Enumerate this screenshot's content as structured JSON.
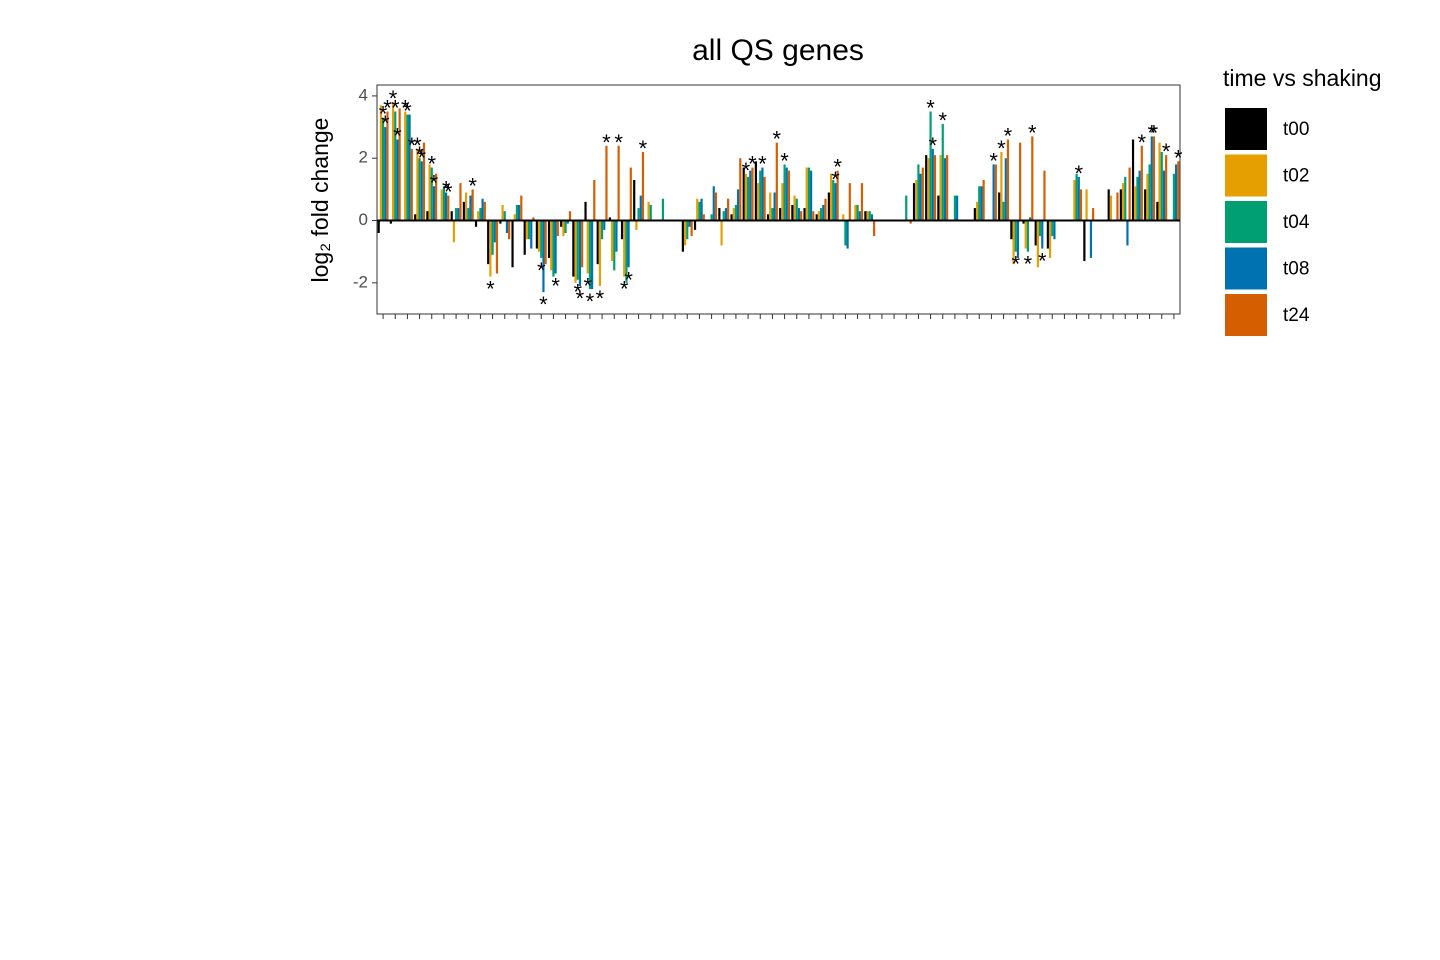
{
  "chart_data": {
    "type": "bar",
    "title": "all QS genes",
    "y_label": "log₂ fold change",
    "legend_title": "time vs shaking",
    "categories": [
      null,
      null,
      null,
      null,
      null,
      null,
      null,
      null,
      null,
      null,
      null,
      null,
      null,
      null,
      null,
      null,
      null,
      null,
      null,
      null,
      null,
      null,
      null,
      null,
      null,
      null,
      null,
      null,
      null,
      null,
      null,
      null,
      null,
      null,
      null,
      null,
      null,
      null,
      null,
      null,
      null,
      null,
      null,
      null,
      null,
      null,
      null,
      null,
      null,
      null,
      null,
      null,
      null,
      null,
      null,
      null,
      null,
      null,
      null,
      null,
      null,
      null,
      null,
      null,
      null,
      null
    ],
    "ylim": [
      -3,
      4.35
    ],
    "yticks": [
      -2,
      0,
      2,
      4
    ],
    "grid": false,
    "legend": "right",
    "series": [
      {
        "name": "t00",
        "color": "#000000",
        "values": [
          -0.4,
          -0.1,
          0.0,
          0.2,
          0.3,
          0.0,
          0.3,
          0.6,
          -0.2,
          -1.4,
          -0.1,
          -1.5,
          -1.1,
          -0.9,
          -1.2,
          -0.2,
          -1.8,
          0.6,
          -1.4,
          0.1,
          -0.6,
          1.3,
          0.0,
          0.0,
          0.0,
          -1.0,
          -0.3,
          0.0,
          0.4,
          0.2,
          1.7,
          1.9,
          0.2,
          0.4,
          0.5,
          0.4,
          0.2,
          0.9,
          0.0,
          0.0,
          0.3,
          0.0,
          0.0,
          0.0,
          1.2,
          2.1,
          0.8,
          0.0,
          0.0,
          0.4,
          0.0,
          0.9,
          -0.6,
          -0.1,
          -0.8,
          -0.9,
          0.0,
          0.0,
          -1.3,
          0.0,
          1.0,
          1.0,
          2.6,
          1.0,
          0.6,
          0.0
        ]
      },
      {
        "name": "t02",
        "color": "#E69F00",
        "values": [
          3.7,
          3.8,
          3.5,
          2.3,
          1.8,
          1.0,
          -0.7,
          0.9,
          0.3,
          -1.8,
          0.5,
          0.2,
          -0.6,
          -1.0,
          -1.6,
          -0.5,
          -2.0,
          -1.7,
          -2.1,
          -1.3,
          -1.8,
          -0.3,
          0.6,
          0.0,
          0.0,
          -0.8,
          0.7,
          0.0,
          -0.8,
          0.4,
          1.5,
          1.2,
          0.9,
          1.2,
          0.8,
          1.7,
          0.3,
          1.5,
          0.2,
          0.5,
          0.3,
          0.0,
          0.0,
          0.0,
          1.3,
          2.0,
          2.1,
          0.0,
          0.0,
          0.6,
          0.0,
          2.2,
          -1.4,
          -0.9,
          -1.5,
          -1.2,
          0.0,
          1.3,
          1.0,
          0.0,
          0.8,
          1.2,
          1.1,
          1.5,
          2.5,
          0.0
        ]
      },
      {
        "name": "t04",
        "color": "#009E73",
        "values": [
          3.3,
          3.5,
          3.4,
          2.0,
          1.7,
          1.1,
          0.4,
          0.4,
          0.4,
          -1.1,
          0.3,
          0.5,
          -0.6,
          -1.2,
          -1.8,
          -0.4,
          -1.9,
          -2.2,
          -0.6,
          -1.6,
          -2.0,
          0.4,
          0.5,
          0.7,
          0.0,
          -0.6,
          0.6,
          0.2,
          0.3,
          0.5,
          1.4,
          1.6,
          0.4,
          1.8,
          0.7,
          1.7,
          0.4,
          1.3,
          -0.8,
          0.5,
          0.3,
          0.0,
          0.0,
          0.8,
          1.8,
          3.5,
          3.1,
          0.8,
          0.0,
          1.1,
          0.0,
          0.6,
          -1.0,
          -1.0,
          -0.5,
          -0.5,
          0.0,
          1.5,
          0.0,
          0.0,
          0.0,
          1.4,
          1.4,
          1.8,
          2.2,
          1.5
        ]
      },
      {
        "name": "t08",
        "color": "#0072B2",
        "values": [
          3.0,
          2.6,
          3.4,
          1.9,
          1.1,
          0.9,
          0.4,
          0.8,
          0.7,
          -0.7,
          -0.4,
          0.5,
          -0.9,
          -2.3,
          -1.7,
          -0.1,
          -2.1,
          -2.2,
          -0.3,
          -1.0,
          -1.5,
          0.8,
          0.0,
          0.0,
          0.0,
          -0.2,
          0.7,
          1.1,
          0.4,
          1.0,
          1.6,
          1.7,
          0.9,
          1.7,
          0.4,
          1.6,
          0.5,
          1.2,
          -0.9,
          0.3,
          0.2,
          0.0,
          0.0,
          0.0,
          1.5,
          2.3,
          2.0,
          0.8,
          0.0,
          1.1,
          1.8,
          2.0,
          -1.2,
          0.1,
          -0.9,
          -0.6,
          0.0,
          1.4,
          -1.2,
          0.0,
          0.0,
          -0.8,
          1.6,
          2.7,
          1.6,
          1.8
        ]
      },
      {
        "name": "t24",
        "color": "#D55E00",
        "values": [
          3.5,
          3.6,
          2.3,
          2.5,
          1.5,
          0.8,
          1.2,
          1.0,
          0.6,
          -1.7,
          -0.6,
          0.8,
          0.1,
          -1.4,
          -0.5,
          0.3,
          -1.5,
          1.3,
          2.4,
          2.4,
          1.7,
          2.2,
          0.0,
          0.0,
          0.0,
          -0.5,
          0.2,
          0.9,
          0.7,
          2.0,
          1.7,
          1.4,
          2.5,
          1.6,
          0.3,
          0.3,
          0.7,
          1.6,
          1.2,
          1.2,
          -0.5,
          0.0,
          0.0,
          -0.1,
          1.7,
          2.1,
          2.1,
          0.0,
          0.0,
          1.3,
          1.8,
          2.6,
          2.5,
          2.7,
          1.6,
          0.0,
          0.0,
          1.0,
          0.4,
          0.0,
          0.9,
          1.7,
          2.4,
          2.7,
          2.1,
          1.9
        ]
      }
    ],
    "annotations": [
      {
        "text": "*",
        "series": 1,
        "index": 1
      },
      {
        "text": "*",
        "series": 1,
        "index": 2
      },
      {
        "text": "*",
        "series": 1,
        "index": 3
      },
      {
        "text": "*",
        "series": 1,
        "index": 9
      },
      {
        "text": "*",
        "series": 1,
        "index": 17
      },
      {
        "text": "*",
        "series": 1,
        "index": 18
      },
      {
        "text": "*",
        "series": 1,
        "index": 20
      },
      {
        "text": "*",
        "series": 1,
        "index": 30
      },
      {
        "text": "*",
        "series": 1,
        "index": 51
      },
      {
        "text": "*",
        "series": 2,
        "index": 0
      },
      {
        "text": "*",
        "series": 2,
        "index": 1
      },
      {
        "text": "*",
        "series": 2,
        "index": 2
      },
      {
        "text": "*",
        "series": 2,
        "index": 3
      },
      {
        "text": "*",
        "series": 2,
        "index": 4
      },
      {
        "text": "*",
        "series": 2,
        "index": 13
      },
      {
        "text": "*",
        "series": 2,
        "index": 16
      },
      {
        "text": "*",
        "series": 2,
        "index": 17
      },
      {
        "text": "*",
        "series": 2,
        "index": 33
      },
      {
        "text": "*",
        "series": 2,
        "index": 45
      },
      {
        "text": "*",
        "series": 2,
        "index": 46
      },
      {
        "text": "*",
        "series": 2,
        "index": 52
      },
      {
        "text": "*",
        "series": 2,
        "index": 53
      },
      {
        "text": "*",
        "series": 3,
        "index": 0
      },
      {
        "text": "*",
        "series": 3,
        "index": 1
      },
      {
        "text": "*",
        "series": 3,
        "index": 3
      },
      {
        "text": "*",
        "series": 3,
        "index": 4
      },
      {
        "text": "*",
        "series": 3,
        "index": 5
      },
      {
        "text": "*",
        "series": 3,
        "index": 13
      },
      {
        "text": "*",
        "series": 3,
        "index": 14
      },
      {
        "text": "*",
        "series": 3,
        "index": 16
      },
      {
        "text": "*",
        "series": 3,
        "index": 20
      },
      {
        "text": "*",
        "series": 3,
        "index": 31
      },
      {
        "text": "*",
        "series": 3,
        "index": 37
      },
      {
        "text": "*",
        "series": 3,
        "index": 45
      },
      {
        "text": "*",
        "series": 3,
        "index": 50
      },
      {
        "text": "*",
        "series": 3,
        "index": 54
      },
      {
        "text": "*",
        "series": 3,
        "index": 57
      },
      {
        "text": "*",
        "series": 3,
        "index": 63
      },
      {
        "text": "*",
        "series": 4,
        "index": 0
      },
      {
        "text": "*",
        "series": 4,
        "index": 2
      },
      {
        "text": "*",
        "series": 4,
        "index": 5
      },
      {
        "text": "*",
        "series": 4,
        "index": 7
      },
      {
        "text": "*",
        "series": 4,
        "index": 18
      },
      {
        "text": "*",
        "series": 4,
        "index": 19
      },
      {
        "text": "*",
        "series": 4,
        "index": 21
      },
      {
        "text": "*",
        "series": 4,
        "index": 30
      },
      {
        "text": "*",
        "series": 4,
        "index": 32
      },
      {
        "text": "*",
        "series": 4,
        "index": 37
      },
      {
        "text": "*",
        "series": 4,
        "index": 51
      },
      {
        "text": "*",
        "series": 4,
        "index": 53
      },
      {
        "text": "*",
        "series": 4,
        "index": 62
      },
      {
        "text": "*",
        "series": 4,
        "index": 63
      },
      {
        "text": "*",
        "series": 4,
        "index": 64
      },
      {
        "text": "*",
        "series": 4,
        "index": 65
      }
    ]
  }
}
